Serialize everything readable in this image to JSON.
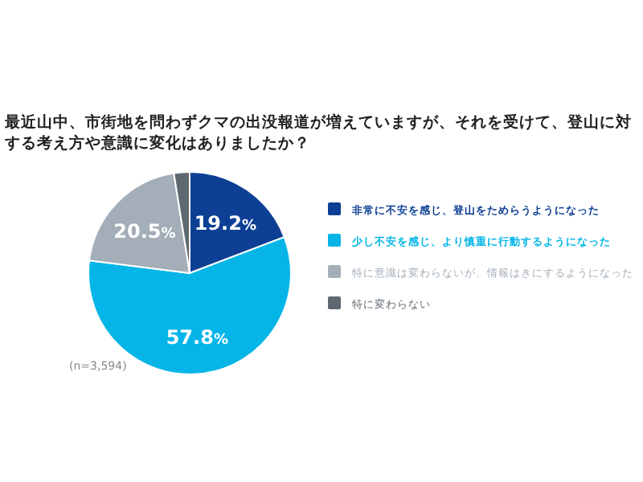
{
  "chart_data": {
    "type": "pie",
    "title": "最近山中、市街地を問わずクマの出没報道が増えていますが、それを受けて、登山に対する考え方や意識に変化はありましたか？",
    "categories": [
      "非常に不安を感じ、登山をためらうようになった",
      "少し不安を感じ、より慎重に行動するようになった",
      "特に意識は変わらないが、情報はきにするようになった",
      "特に変わらない"
    ],
    "values": [
      19.2,
      57.8,
      20.5,
      2.5
    ],
    "colors": [
      "#0d3f94",
      "#05b5e8",
      "#a3aeb8",
      "#5f6870"
    ],
    "value_labels": [
      "19.2%",
      "57.8%",
      "20.5%",
      null
    ],
    "legend": "right",
    "annotations": [
      "(n=3,594)"
    ]
  }
}
